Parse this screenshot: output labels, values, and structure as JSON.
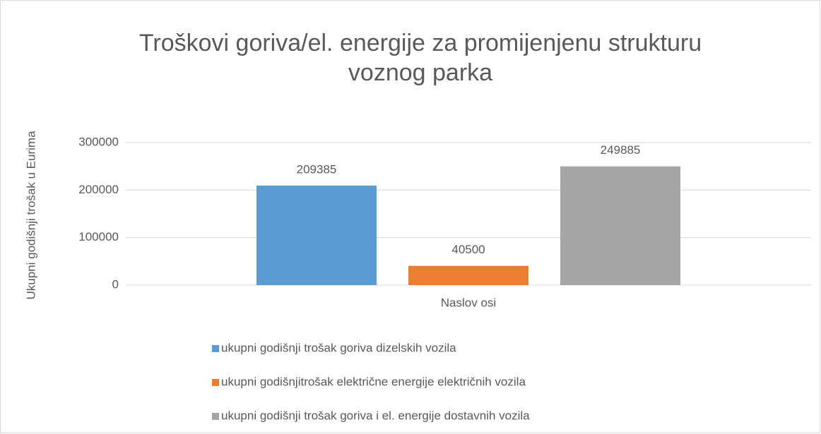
{
  "chart_data": {
    "type": "bar",
    "title": "Troškovi goriva/el. energije za promijenjenu strukturu voznog parka",
    "x_label": "Naslov osi",
    "y_label": "Ukupni godišnji trošak u Eurima",
    "categories": [
      null
    ],
    "series": [
      {
        "name": "ukupni godišnji trošak goriva dizelskih vozila",
        "color": "#5b9bd5",
        "values": [
          209385
        ]
      },
      {
        "name": "ukupni godišnjitrošak električne energije električnih vozila",
        "color": "#ed7d31",
        "values": [
          40500
        ]
      },
      {
        "name": "ukupni godišnji trošak goriva i el. energije dostavnih vozila",
        "color": "#a5a5a5",
        "values": [
          249885
        ]
      }
    ],
    "ylim": [
      0,
      300000
    ],
    "yticks": [
      0,
      100000,
      200000,
      300000
    ],
    "grid": true,
    "legend": "bottom"
  }
}
